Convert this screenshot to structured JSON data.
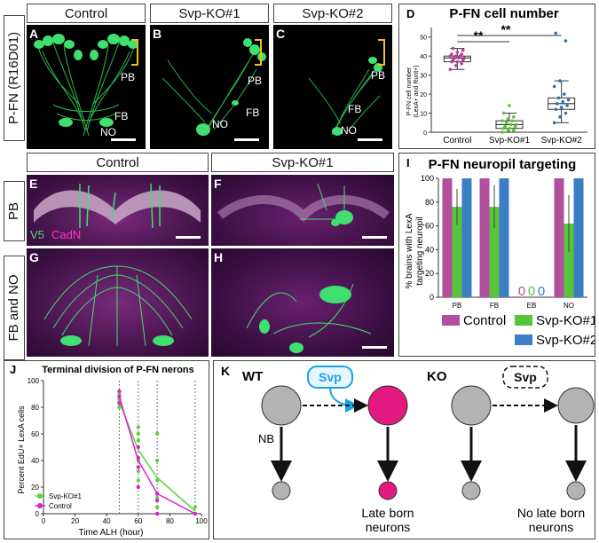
{
  "row1": {
    "side_label": "P-FN (R16D01)",
    "headers": [
      "Control",
      "Svp-KO#1",
      "Svp-KO#2"
    ],
    "panels": [
      {
        "letter": "A",
        "labels": [
          "PB",
          "FB",
          "NO"
        ]
      },
      {
        "letter": "B",
        "labels": [
          "PB",
          "FB",
          "NO"
        ]
      },
      {
        "letter": "C",
        "labels": [
          "PB",
          "FB",
          "NO"
        ]
      }
    ]
  },
  "panel_d": {
    "letter": "D",
    "title": "P-FN cell number",
    "ylabel_line1": "P-FN cell number",
    "ylabel_line2": "(LexA+ and Runt+)",
    "yticks": [
      "0",
      "10",
      "20",
      "30",
      "40",
      "50"
    ],
    "sig_marks": [
      "**",
      "**"
    ],
    "chart_data": {
      "type": "box",
      "categories": [
        "Control",
        "Svp-KO#1",
        "Svp-KO#2"
      ],
      "ylim": [
        0,
        55
      ],
      "boxes": [
        {
          "name": "Control",
          "q1": 37,
          "median": 39,
          "q3": 40,
          "whisker_low": 33,
          "whisker_high": 44,
          "color": "#b8409a"
        },
        {
          "name": "Svp-KO#1",
          "q1": 2,
          "median": 4,
          "q3": 6,
          "whisker_low": 0,
          "whisker_high": 10,
          "color": "#5cc23c"
        },
        {
          "name": "Svp-KO#2",
          "q1": 12,
          "median": 15,
          "q3": 18,
          "whisker_low": 5,
          "whisker_high": 27,
          "color": "#2f6fb7"
        }
      ],
      "points": {
        "Control": [
          33,
          35,
          36,
          37,
          37,
          38,
          38,
          39,
          39,
          39,
          40,
          40,
          40,
          41,
          41,
          42,
          43,
          44
        ],
        "Svp-KO#1": [
          0,
          1,
          1,
          2,
          2,
          3,
          3,
          4,
          4,
          5,
          6,
          6,
          7,
          8,
          10,
          14
        ],
        "Svp-KO#2": [
          5,
          8,
          10,
          12,
          13,
          14,
          15,
          16,
          17,
          18,
          20,
          24,
          27,
          48,
          52
        ]
      }
    }
  },
  "row2": {
    "headers": [
      "Control",
      "Svp-KO#1"
    ],
    "side_labels": [
      "PB",
      "FB and NO"
    ],
    "panels": [
      {
        "letter": "E",
        "stain_a": "V5",
        "stain_b": "CadN"
      },
      {
        "letter": "F"
      },
      {
        "letter": "G"
      },
      {
        "letter": "H"
      }
    ]
  },
  "panel_i": {
    "letter": "I",
    "title": "P-FN neuropil targeting",
    "ylabel_line1": "% brains with LexA",
    "ylabel_line2": "targeting neuropil",
    "yticks": [
      "0",
      "20",
      "40",
      "60",
      "80",
      "100"
    ],
    "zero_marks": [
      "0",
      "0",
      "0"
    ],
    "legend": [
      "Control",
      "Svp-KO#1",
      "Svp-KO#2"
    ],
    "chart_data": {
      "type": "bar",
      "categories": [
        "PB",
        "FB",
        "EB",
        "NO"
      ],
      "ylim": [
        0,
        100
      ],
      "series": [
        {
          "name": "Control",
          "values": [
            100,
            100,
            0,
            100
          ],
          "color": "#b14f9e"
        },
        {
          "name": "Svp-KO#1",
          "values": [
            76,
            76,
            0,
            62
          ],
          "errors": [
            15,
            18,
            0,
            24
          ],
          "color": "#58c43a"
        },
        {
          "name": "Svp-KO#2",
          "values": [
            100,
            100,
            0,
            100
          ],
          "color": "#3a7ec4"
        }
      ]
    }
  },
  "panel_j": {
    "letter": "J",
    "title": "Terminal division of P-FN nerons",
    "ylabel": "Percent EdU+ LexA cells",
    "xlabel": "Time ALH (hour)",
    "xticks": [
      "0",
      "20",
      "40",
      "60",
      "80",
      "100"
    ],
    "yticks": [
      "0",
      "20",
      "40",
      "60",
      "80",
      "100"
    ],
    "legend": [
      "Svp-KO#1",
      "Control"
    ],
    "chart_data": {
      "type": "line",
      "xlim": [
        0,
        100
      ],
      "ylim": [
        0,
        100
      ],
      "series": [
        {
          "name": "Svp-KO#1",
          "x": [
            48,
            60,
            72,
            96
          ],
          "y": [
            84,
            48,
            27,
            2
          ],
          "color": "#5bd43c",
          "points_x": [
            48,
            48,
            48,
            48,
            60,
            60,
            60,
            60,
            60,
            60,
            72,
            72,
            72,
            72,
            72,
            96,
            96
          ],
          "points_y": [
            80,
            84,
            86,
            90,
            25,
            32,
            40,
            55,
            60,
            65,
            5,
            12,
            25,
            40,
            60,
            0,
            5
          ]
        },
        {
          "name": "Control",
          "x": [
            48,
            60,
            72,
            96
          ],
          "y": [
            88,
            40,
            15,
            0
          ],
          "color": "#e21ad0",
          "points_x": [
            48,
            48,
            48,
            60,
            60,
            60,
            60,
            72,
            72,
            72,
            96
          ],
          "points_y": [
            83,
            88,
            92,
            20,
            35,
            42,
            50,
            0,
            10,
            15,
            0
          ]
        }
      ]
    }
  },
  "panel_k": {
    "letter": "K",
    "wt_label": "WT",
    "ko_label": "KO",
    "svp": "Svp",
    "nb": "NB",
    "late_born": [
      "Late born",
      "neurons"
    ],
    "no_late_born": [
      "No late born",
      "neurons"
    ],
    "colors": {
      "nb": "#b3b3b3",
      "late": "#e2197e",
      "svp_fill": "#e6f6ff",
      "svp_stroke": "#1aa2e6"
    }
  }
}
